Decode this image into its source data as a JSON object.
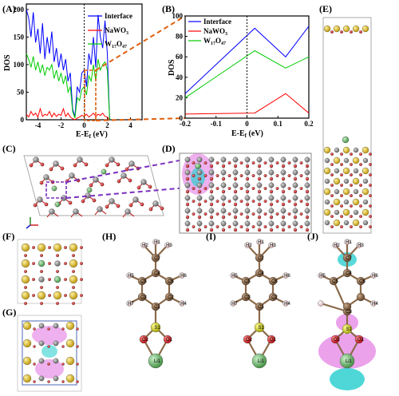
{
  "panels": [
    "(A)",
    "(B)",
    "(C)",
    "(D)",
    "(E)",
    "(F)",
    "(G)",
    "(H)",
    "(I)",
    "(J)"
  ],
  "colors": {
    "interface": "#0000ff",
    "nawo3": "#ff0000",
    "w17o47": "#00cc00",
    "guide": "#e06010",
    "purple": "#7a2fbf",
    "W": "#808080",
    "O": "#e01010",
    "Na": "#e6c020",
    "Li": "#7ec87e",
    "C": "#8b6a4a",
    "H": "#f2d0d0",
    "S": "#d8d000",
    "iso_pos": "#e070e0",
    "iso_neg": "#30d0d0"
  },
  "chart_data": [
    {
      "panel": "(A)",
      "type": "line",
      "xlabel": "E-E_f (eV)",
      "ylabel": "DOS",
      "xlim": [
        -5,
        5
      ],
      "ylim": [
        0,
        210
      ],
      "xticks": [
        -4,
        -2,
        0,
        2,
        4
      ],
      "yticks": [
        0,
        50,
        100,
        150,
        200
      ],
      "fermi_x": 0,
      "series": [
        {
          "name": "Interface",
          "color": "#0000ff",
          "x": [
            -5,
            -4.8,
            -4.6,
            -4.4,
            -4.2,
            -4,
            -3.8,
            -3.6,
            -3.4,
            -3.2,
            -3,
            -2.8,
            -2.6,
            -2.4,
            -2.2,
            -2,
            -1.8,
            -1.6,
            -1.4,
            -1.2,
            -1,
            -0.8,
            -0.6,
            -0.4,
            -0.2,
            0,
            0.2,
            0.4,
            0.6,
            0.8,
            1,
            1.2,
            1.4,
            1.6,
            1.8,
            2,
            2.2
          ],
          "y": [
            200,
            185,
            150,
            195,
            140,
            165,
            120,
            175,
            110,
            150,
            120,
            160,
            105,
            130,
            95,
            120,
            90,
            110,
            70,
            85,
            20,
            5,
            60,
            50,
            85,
            90,
            60,
            120,
            100,
            150,
            95,
            190,
            150,
            130,
            180,
            120,
            0
          ]
        },
        {
          "name": "NaWO_3",
          "color": "#ff0000",
          "x": [
            -5,
            -4.8,
            -4.6,
            -4.4,
            -4.2,
            -4,
            -3.8,
            -3.6,
            -3.4,
            -3.2,
            -3,
            -2.8,
            -2.6,
            -2.4,
            -2.2,
            -2,
            -1.8,
            -1.6,
            -1.4,
            -1.2,
            -1,
            -0.8,
            -0.6,
            -0.4,
            -0.2,
            0,
            0.2,
            0.4,
            0.6,
            0.8,
            1,
            1.2,
            1.4,
            1.6,
            1.8,
            2,
            2.2
          ],
          "y": [
            10,
            5,
            15,
            8,
            12,
            5,
            20,
            6,
            10,
            8,
            15,
            5,
            12,
            6,
            10,
            8,
            20,
            6,
            12,
            5,
            2,
            0,
            3,
            5,
            8,
            6,
            10,
            5,
            8,
            12,
            6,
            10,
            8,
            12,
            6,
            5,
            0
          ]
        },
        {
          "name": "W_17O_47",
          "color": "#00cc00",
          "x": [
            -5,
            -4.8,
            -4.6,
            -4.4,
            -4.2,
            -4,
            -3.8,
            -3.6,
            -3.4,
            -3.2,
            -3,
            -2.8,
            -2.6,
            -2.4,
            -2.2,
            -2,
            -1.8,
            -1.6,
            -1.4,
            -1.2,
            -1,
            -0.8,
            -0.6,
            -0.4,
            -0.2,
            0,
            0.2,
            0.4,
            0.6,
            0.8,
            1,
            1.2,
            1.4,
            1.6,
            1.8,
            2,
            2.2
          ],
          "y": [
            120,
            110,
            95,
            115,
            90,
            105,
            85,
            100,
            80,
            95,
            90,
            100,
            75,
            90,
            70,
            85,
            65,
            80,
            50,
            60,
            15,
            3,
            40,
            35,
            55,
            60,
            45,
            80,
            70,
            100,
            70,
            110,
            90,
            100,
            105,
            90,
            0
          ]
        }
      ]
    },
    {
      "panel": "(B)",
      "type": "line",
      "xlabel": "E-E_f (eV)",
      "ylabel": "DOS",
      "xlim": [
        -0.2,
        0.2
      ],
      "ylim": [
        0,
        100
      ],
      "xticks": [
        -0.2,
        -0.1,
        0.0,
        0.1,
        0.2
      ],
      "yticks": [
        0,
        20,
        40,
        60,
        80,
        100
      ],
      "fermi_x": 0,
      "series": [
        {
          "name": "Interface",
          "color": "#0000ff",
          "x": [
            -0.2,
            0.025,
            0.125,
            0.2
          ],
          "y": [
            24,
            88,
            60,
            90
          ]
        },
        {
          "name": "NaWO_3",
          "color": "#ff0000",
          "x": [
            -0.2,
            0.025,
            0.125,
            0.2
          ],
          "y": [
            4,
            5,
            24,
            5
          ]
        },
        {
          "name": "W_17O_47",
          "color": "#00cc00",
          "x": [
            -0.2,
            0.025,
            0.125,
            0.2
          ],
          "y": [
            20,
            66,
            49,
            60
          ]
        }
      ]
    }
  ],
  "molecule_labels": {
    "H_panel": [
      "H2",
      "H3",
      "H1",
      "C7",
      "H5",
      "C5",
      "C4",
      "H6",
      "C6",
      "C3",
      "H7",
      "C2",
      "C1",
      "H4",
      "S1",
      "O2",
      "O1",
      "Li1"
    ],
    "I_panel": [
      "H2",
      "H3",
      "H1",
      "C7",
      "H5",
      "C5",
      "C4",
      "H6",
      "C6",
      "C3",
      "H7",
      "C2",
      "C1",
      "H4",
      "S1",
      "O2",
      "O1",
      "Li1"
    ],
    "J_panel": [
      "H2",
      "H3",
      "H1",
      "C7",
      "H5",
      "C5",
      "C4",
      "H6",
      "C6",
      "H4",
      "C3",
      "S1",
      "O2",
      "O1",
      "Li1"
    ]
  }
}
